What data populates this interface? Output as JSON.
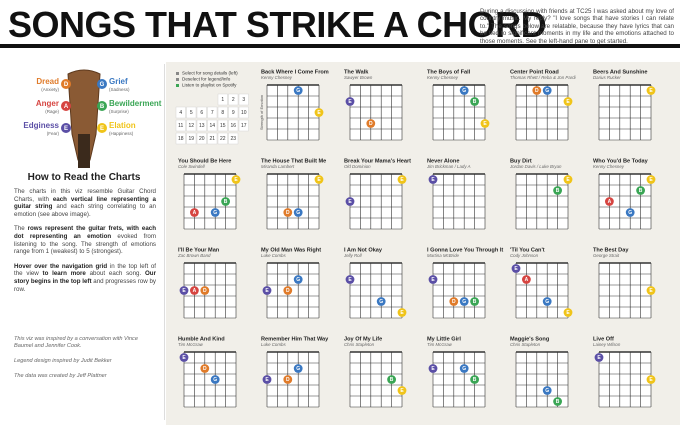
{
  "header": {
    "title": "SONGS THAT STRIKE A CHORD"
  },
  "intro": "During a discussion with friends at TC25 I was asked about my love of country music. My reply? \"I love songs that have stories I can relate to.\" The songs below are relatable, because they have lyrics that can be tied to significant moments in my life and the emotions attached to those moments. See the left-hand pane to get started.",
  "legend": {
    "emotions": [
      {
        "name": "Edginess",
        "note": "(Fear)",
        "letter": "E",
        "color": "#5b4fa6"
      },
      {
        "name": "Anger",
        "note": "(Rage)",
        "letter": "A",
        "color": "#d64541"
      },
      {
        "name": "Dread",
        "note": "(Anxiety)",
        "letter": "D",
        "color": "#e07b2a"
      },
      {
        "name": "Grief",
        "note": "(Sadness)",
        "letter": "G",
        "color": "#3a78c2"
      },
      {
        "name": "Bewilderment",
        "note": "(Surprise)",
        "letter": "B",
        "color": "#3aa655"
      },
      {
        "name": "Elation",
        "note": "(Happiness)",
        "letter": "E",
        "color": "#f0c419"
      }
    ]
  },
  "how_to": {
    "heading": "How to Read the Charts",
    "paragraphs": [
      [
        "The charts in this viz resemble Guitar Chord Charts, with ",
        {
          "bold": "each vertical line representing a guitar string"
        },
        " and each string correlating to an emotion (see above image)."
      ],
      [
        "The ",
        {
          "bold": "rows represent the guitar frets, with each dot representing an emotion"
        },
        " evoked from listening to the song. The strength of emotions range from 1 (weakest) to 5 (strongest)."
      ],
      [
        {
          "bold": "Hover over the navigation grid"
        },
        " in the top left of the view ",
        {
          "bold": "to learn more"
        },
        " about each song. ",
        {
          "bold": "Our story begins in the top left"
        },
        " and progresses row by row."
      ]
    ]
  },
  "credits": [
    "This viz was inspired by a conversation with Vince Baumel and Jennifer Cook.",
    "Legend design inspired by Judit Bekker",
    "The data was created by Jeff Plattner"
  ],
  "nav": {
    "instructions": [
      "Select for song details (left)",
      "Deselect for legend/info",
      "Listen to playlist on Spotify"
    ],
    "numbers": [
      1,
      2,
      3,
      4,
      5,
      6,
      7,
      8,
      9,
      10,
      11,
      12,
      13,
      14,
      15,
      16,
      17,
      18,
      19,
      20,
      21,
      22,
      23
    ]
  },
  "chart_data": {
    "type": "chord",
    "strength_label": "Strength of Emotion",
    "ylim": [
      0,
      5
    ],
    "songs": [
      {
        "title": "Back Where I Come From",
        "artist": "Kenny Chesney",
        "strengths": [
          null,
          null,
          null,
          1,
          null,
          3
        ]
      },
      {
        "title": "The Walk",
        "artist": "Sawyer Brown",
        "strengths": [
          2,
          null,
          4,
          null,
          null,
          null
        ]
      },
      {
        "title": "The Boys of Fall",
        "artist": "Kenny Chesney",
        "strengths": [
          null,
          null,
          null,
          1,
          2,
          4
        ]
      },
      {
        "title": "Center Point Road",
        "artist": "Thomas Rhett / Reba & Jon Pardi",
        "strengths": [
          null,
          null,
          1,
          1,
          null,
          2
        ]
      },
      {
        "title": "Beers And Sunshine",
        "artist": "Darius Rucker",
        "strengths": [
          null,
          null,
          null,
          null,
          null,
          1
        ]
      },
      {
        "title": "You Should Be Here",
        "artist": "Cole Swindell",
        "strengths": [
          null,
          4,
          null,
          4,
          3,
          1
        ]
      },
      {
        "title": "The House That Built Me",
        "artist": "Miranda Lambert",
        "strengths": [
          null,
          null,
          4,
          4,
          null,
          1
        ]
      },
      {
        "title": "Break Your Mama's Heart",
        "artist": "Old Dominion",
        "strengths": [
          3,
          null,
          null,
          null,
          null,
          1
        ]
      },
      {
        "title": "Never Alone",
        "artist": "Jim Brickman / Lady A",
        "strengths": [
          1,
          null,
          null,
          null,
          null,
          null
        ]
      },
      {
        "title": "Buy Dirt",
        "artist": "Jordan Davis / Luke Bryan",
        "strengths": [
          null,
          null,
          null,
          null,
          2,
          1
        ]
      },
      {
        "title": "Who You'd Be Today",
        "artist": "Kenny Chesney",
        "strengths": [
          null,
          3,
          null,
          4,
          2,
          1
        ]
      },
      {
        "title": "I'll Be Your Man",
        "artist": "Zac Brown Band",
        "strengths": [
          3,
          3,
          3,
          null,
          null,
          null
        ]
      },
      {
        "title": "My Old Man Was Right",
        "artist": "Luke Combs",
        "strengths": [
          3,
          null,
          3,
          2,
          null,
          null
        ]
      },
      {
        "title": "I Am Not Okay",
        "artist": "Jelly Roll",
        "strengths": [
          2,
          null,
          null,
          4,
          null,
          5
        ]
      },
      {
        "title": "I Gonna Love You Through It",
        "artist": "Martina McBride",
        "strengths": [
          2,
          null,
          4,
          4,
          4,
          null
        ]
      },
      {
        "title": "'Til You Can't",
        "artist": "Cody Johnson",
        "strengths": [
          1,
          2,
          null,
          4,
          null,
          5
        ]
      },
      {
        "title": "The Best Day",
        "artist": "George Strait",
        "strengths": [
          null,
          null,
          null,
          null,
          null,
          3
        ]
      },
      {
        "title": "Humble And Kind",
        "artist": "Tim McGraw",
        "strengths": [
          1,
          null,
          2,
          3,
          null,
          null
        ]
      },
      {
        "title": "Remember Him That Way",
        "artist": "Luke Combs",
        "strengths": [
          3,
          null,
          3,
          2,
          null,
          null
        ]
      },
      {
        "title": "Joy Of My Life",
        "artist": "Chris Stapleton",
        "strengths": [
          null,
          null,
          null,
          null,
          3,
          4
        ]
      },
      {
        "title": "My Little Girl",
        "artist": "Tim McGraw",
        "strengths": [
          2,
          null,
          null,
          2,
          3,
          null
        ]
      },
      {
        "title": "Maggie's Song",
        "artist": "Chris Stapleton",
        "strengths": [
          null,
          null,
          null,
          4,
          5,
          null
        ]
      },
      {
        "title": "Live Off",
        "artist": "Lainey Wilson",
        "strengths": [
          1,
          null,
          null,
          null,
          null,
          3
        ]
      }
    ]
  }
}
